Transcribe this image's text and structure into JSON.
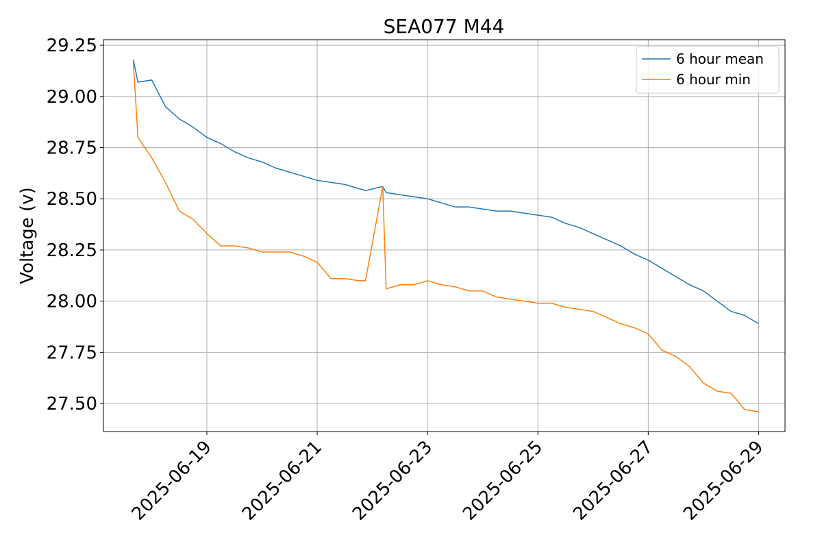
{
  "chart_data": {
    "type": "line",
    "title": "SEA077 M44",
    "y_label": "Voltage (v)",
    "x": [
      "2025-06-17 16:00",
      "2025-06-17 18:00",
      "2025-06-18 00:00",
      "2025-06-18 06:00",
      "2025-06-18 12:00",
      "2025-06-18 18:00",
      "2025-06-19 00:00",
      "2025-06-19 06:00",
      "2025-06-19 12:00",
      "2025-06-19 18:00",
      "2025-06-20 00:00",
      "2025-06-20 06:00",
      "2025-06-20 12:00",
      "2025-06-20 18:00",
      "2025-06-21 00:00",
      "2025-06-21 06:00",
      "2025-06-21 12:00",
      "2025-06-21 18:00",
      "2025-06-21 21:00",
      "2025-06-22 04:30",
      "2025-06-22 06:00",
      "2025-06-22 12:00",
      "2025-06-22 18:00",
      "2025-06-23 00:00",
      "2025-06-23 06:00",
      "2025-06-23 12:00",
      "2025-06-23 18:00",
      "2025-06-24 00:00",
      "2025-06-24 06:00",
      "2025-06-24 12:00",
      "2025-06-24 18:00",
      "2025-06-25 00:00",
      "2025-06-25 06:00",
      "2025-06-25 12:00",
      "2025-06-25 18:00",
      "2025-06-26 00:00",
      "2025-06-26 06:00",
      "2025-06-26 12:00",
      "2025-06-26 18:00",
      "2025-06-27 00:00",
      "2025-06-27 06:00",
      "2025-06-27 12:00",
      "2025-06-27 18:00",
      "2025-06-28 00:00",
      "2025-06-28 06:00",
      "2025-06-28 12:00",
      "2025-06-28 18:00",
      "2025-06-29 00:00"
    ],
    "series": [
      {
        "name": "6 hour mean",
        "color": "#1f77b4",
        "values": [
          29.18,
          29.07,
          29.08,
          28.95,
          28.89,
          28.85,
          28.8,
          28.77,
          28.73,
          28.7,
          28.68,
          28.65,
          28.63,
          28.61,
          28.59,
          28.58,
          28.57,
          28.55,
          28.54,
          28.56,
          28.53,
          28.52,
          28.51,
          28.5,
          28.48,
          28.46,
          28.46,
          28.45,
          28.44,
          28.44,
          28.43,
          28.42,
          28.41,
          28.38,
          28.36,
          28.33,
          28.3,
          28.27,
          28.23,
          28.2,
          28.16,
          28.12,
          28.08,
          28.05,
          28.0,
          27.95,
          27.93,
          27.89
        ]
      },
      {
        "name": "6 hour min",
        "color": "#ff7f0e",
        "values": [
          29.17,
          28.8,
          28.7,
          28.58,
          28.44,
          28.4,
          28.33,
          28.27,
          28.27,
          28.26,
          28.24,
          28.24,
          28.24,
          28.22,
          28.19,
          28.11,
          28.11,
          28.1,
          28.1,
          28.56,
          28.06,
          28.08,
          28.08,
          28.1,
          28.08,
          28.07,
          28.05,
          28.05,
          28.02,
          28.01,
          28.0,
          27.99,
          27.99,
          27.97,
          27.96,
          27.95,
          27.92,
          27.89,
          27.87,
          27.84,
          27.76,
          27.73,
          27.68,
          27.6,
          27.56,
          27.55,
          27.47,
          27.46
        ]
      }
    ],
    "xlim": [
      "2025-06-17 03:00",
      "2025-06-29 11:30"
    ],
    "xticks": [
      "2025-06-19",
      "2025-06-21",
      "2025-06-23",
      "2025-06-25",
      "2025-06-27",
      "2025-06-29"
    ],
    "ylim": [
      27.363,
      29.277
    ],
    "yticks": [
      {
        "value": 27.5,
        "label": "27.50"
      },
      27.75,
      {
        "value": 28,
        "label": "28.00"
      },
      28.25,
      {
        "value": 28.5,
        "label": "28.50"
      },
      28.75,
      {
        "value": 29,
        "label": "29.00"
      },
      29.25
    ],
    "grid": true,
    "legend": "upper right"
  }
}
